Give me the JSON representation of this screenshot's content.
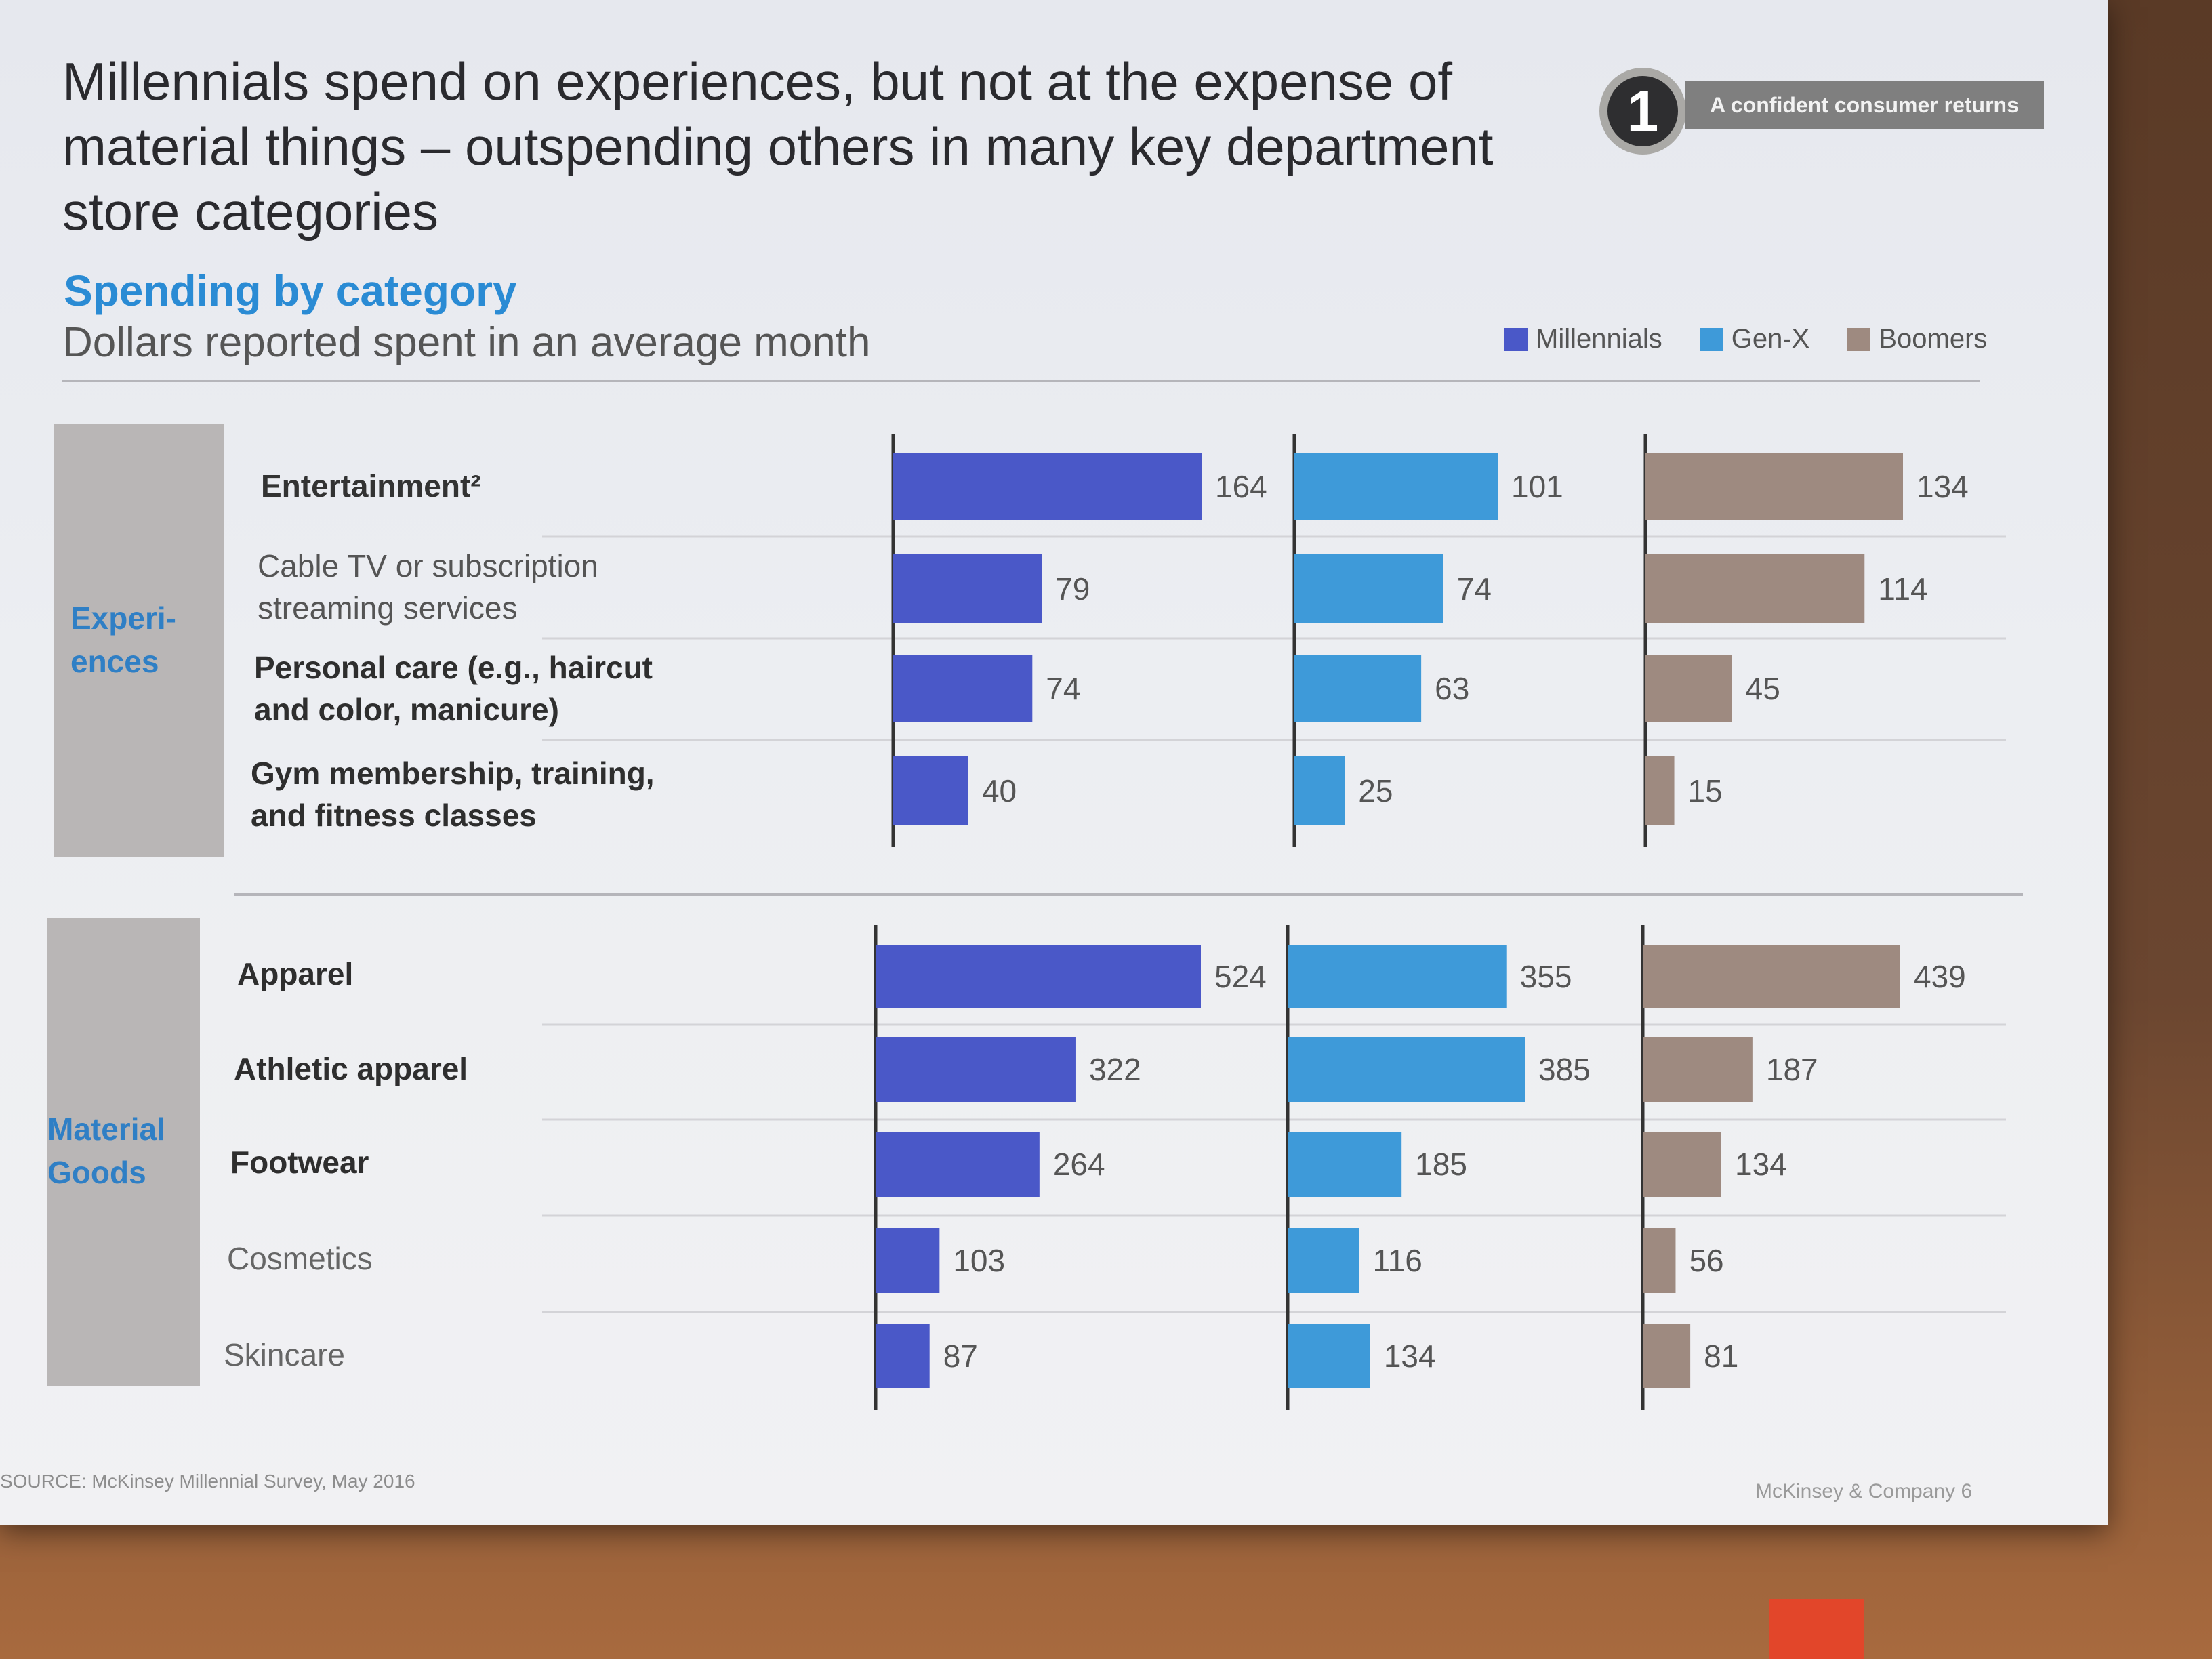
{
  "title": "Millennials spend on experiences, but not at the expense of material things – outspending others in many key department store categories",
  "badge": {
    "number": "1",
    "label": "A confident consumer returns"
  },
  "subtitle": "Spending by category",
  "unit_label": "Dollars reported spent in an average month",
  "legend": [
    {
      "name": "Millennials",
      "color": "#4a58c8"
    },
    {
      "name": "Gen-X",
      "color": "#3e9ad9"
    },
    {
      "name": "Boomers",
      "color": "#9e8a80"
    }
  ],
  "groups": [
    {
      "label": "Experi-\nences",
      "categories": [
        {
          "label": "Entertainment²",
          "bold": true
        },
        {
          "label": "Cable TV or subscription\nstreaming services",
          "bold": false
        },
        {
          "label": "Personal care (e.g., haircut\nand color, manicure)",
          "bold": true
        },
        {
          "label": "Gym membership, training,\nand fitness classes",
          "bold": true
        }
      ]
    },
    {
      "label": "Material\nGoods",
      "categories": [
        {
          "label": "Apparel",
          "bold": true
        },
        {
          "label": "Athletic apparel",
          "bold": true
        },
        {
          "label": "Footwear",
          "bold": true
        },
        {
          "label": "Cosmetics",
          "bold": false
        },
        {
          "label": "Skincare",
          "bold": false
        }
      ]
    }
  ],
  "chart_data": [
    {
      "type": "bar",
      "orientation": "horizontal",
      "group": "Experiences",
      "categories": [
        "Entertainment²",
        "Cable TV or subscription streaming services",
        "Personal care (e.g., haircut and color, manicure)",
        "Gym membership, training, and fitness classes"
      ],
      "series": [
        {
          "name": "Millennials",
          "values": [
            164,
            79,
            74,
            40
          ]
        },
        {
          "name": "Gen-X",
          "values": [
            101,
            74,
            63,
            25
          ]
        },
        {
          "name": "Boomers",
          "values": [
            134,
            114,
            45,
            15
          ]
        }
      ]
    },
    {
      "type": "bar",
      "orientation": "horizontal",
      "group": "Material Goods",
      "categories": [
        "Apparel",
        "Athletic apparel",
        "Footwear",
        "Cosmetics",
        "Skincare"
      ],
      "series": [
        {
          "name": "Millennials",
          "values": [
            524,
            322,
            264,
            103,
            87
          ]
        },
        {
          "name": "Gen-X",
          "values": [
            355,
            385,
            185,
            116,
            134
          ]
        },
        {
          "name": "Boomers",
          "values": [
            439,
            187,
            134,
            56,
            81
          ]
        }
      ]
    }
  ],
  "source": "SOURCE: McKinsey Millennial Survey, May 2016",
  "footer": "McKinsey & Company   6"
}
